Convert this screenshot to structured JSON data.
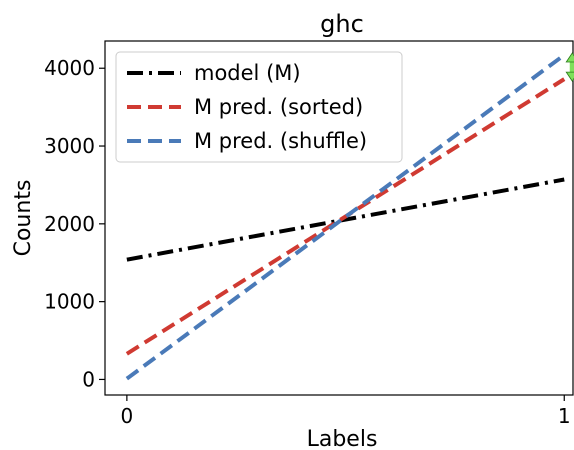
{
  "chart_data": {
    "type": "line",
    "title": "ghc",
    "xlabel": "Labels",
    "ylabel": "Counts",
    "x": [
      0,
      1
    ],
    "xlim": [
      -0.05,
      1.02
    ],
    "ylim": [
      -200,
      4350
    ],
    "xticks": [
      0,
      1
    ],
    "yticks": [
      0,
      1000,
      2000,
      3000,
      4000
    ],
    "grid": false,
    "legend_position": "top-left",
    "series": [
      {
        "name": "model (M)",
        "values": [
          1540,
          2570
        ],
        "color": "#000000",
        "dash": "dashdot"
      },
      {
        "name": "M pred. (sorted)",
        "values": [
          330,
          3860
        ],
        "color": "#d03a32",
        "dash": "dashed"
      },
      {
        "name": "M pred. (shuffle)",
        "values": [
          10,
          4170
        ],
        "color": "#4a7ab8",
        "dash": "dashed"
      }
    ],
    "annotation": {
      "type": "double-arrow",
      "x": 1,
      "from": 3860,
      "to": 4170,
      "color": "#7ee05a"
    }
  }
}
